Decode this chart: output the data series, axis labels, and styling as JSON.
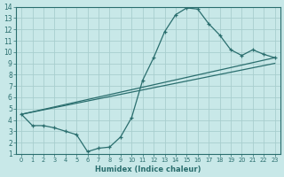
{
  "xlabel": "Humidex (Indice chaleur)",
  "background_color": "#c8e8e8",
  "grid_color": "#a8cece",
  "line_color": "#2a6e6e",
  "xlim": [
    -0.5,
    23.5
  ],
  "ylim": [
    1,
    14
  ],
  "xticks": [
    0,
    1,
    2,
    3,
    4,
    5,
    6,
    7,
    8,
    9,
    10,
    11,
    12,
    13,
    14,
    15,
    16,
    17,
    18,
    19,
    20,
    21,
    22,
    23
  ],
  "yticks": [
    1,
    2,
    3,
    4,
    5,
    6,
    7,
    8,
    9,
    10,
    11,
    12,
    13,
    14
  ],
  "line1_x": [
    0,
    23
  ],
  "line1_y": [
    4.5,
    9.5
  ],
  "line2_x": [
    0,
    23
  ],
  "line2_y": [
    4.5,
    9.0
  ],
  "wiggly_x": [
    0,
    1,
    2,
    3,
    4,
    5,
    6,
    7,
    8,
    9,
    10,
    11,
    12,
    13,
    14,
    15,
    16,
    17,
    18,
    19,
    20,
    21,
    22,
    23
  ],
  "wiggly_y": [
    4.5,
    3.5,
    3.5,
    3.3,
    3.0,
    2.7,
    1.2,
    1.5,
    1.6,
    2.5,
    4.2,
    7.5,
    9.5,
    11.8,
    13.3,
    13.9,
    13.8,
    12.5,
    11.5,
    10.2,
    9.7,
    10.2,
    9.8,
    9.5
  ]
}
